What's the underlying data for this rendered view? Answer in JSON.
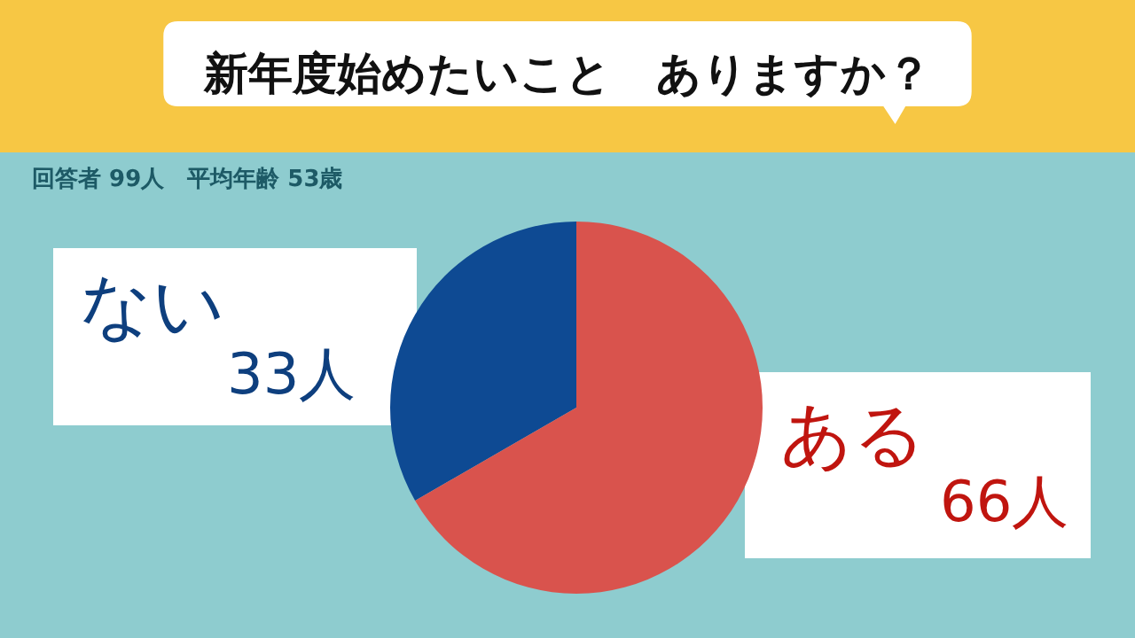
{
  "chart_data": {
    "type": "pie",
    "title": "新年度始めたいこと　ありますか？",
    "subtitle": "回答者 99人　平均年齢 53歳",
    "categories": [
      "ない",
      "ある"
    ],
    "values": [
      33,
      66
    ],
    "colors": [
      "#0e4a93",
      "#d9534d"
    ],
    "value_labels": [
      "33人",
      "66人"
    ],
    "legend": false
  }
}
